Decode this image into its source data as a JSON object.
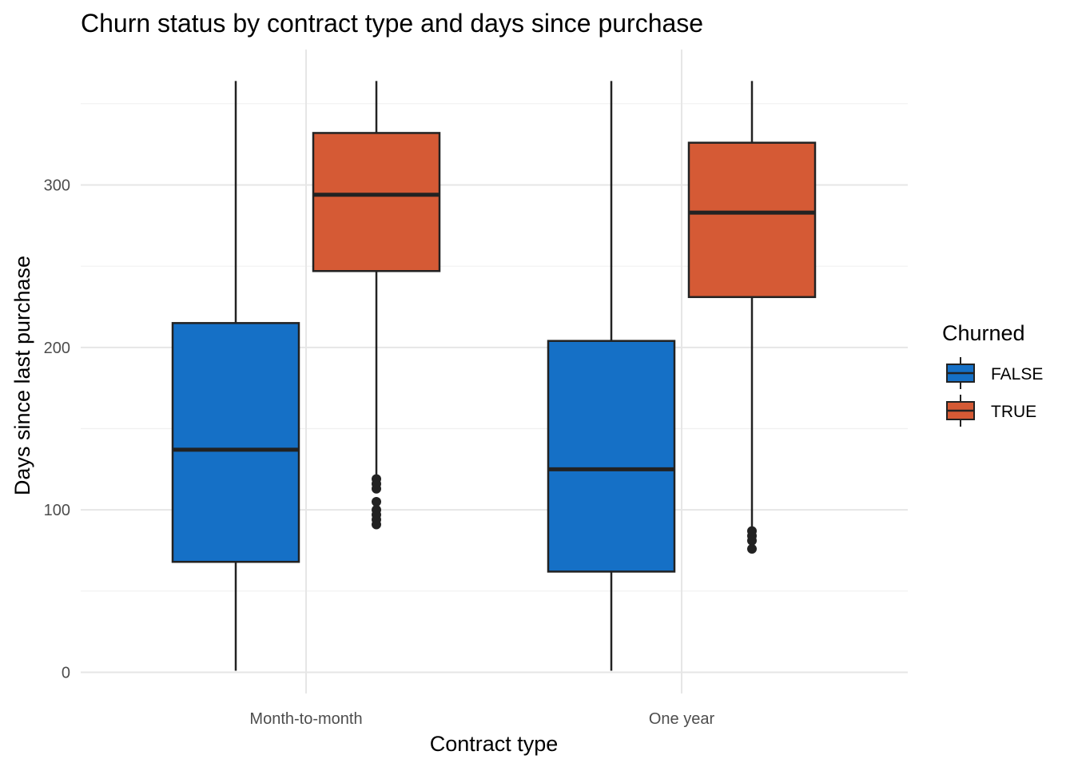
{
  "chart_data": {
    "type": "boxplot",
    "title": "Churn status by contract type and days since purchase",
    "xlabel": "Contract type",
    "ylabel": "Days since last purchase",
    "categories": [
      "Month-to-month",
      "One year"
    ],
    "ylim": [
      -3,
      367
    ],
    "yticks": [
      0,
      100,
      200,
      300
    ],
    "grid": true,
    "legend": {
      "title": "Churned",
      "position": "right"
    },
    "series": [
      {
        "name": "FALSE",
        "color": "#1570C6",
        "boxes": [
          {
            "min": 1,
            "q1": 68,
            "median": 137,
            "q3": 215,
            "max": 364,
            "outliers": []
          },
          {
            "min": 1,
            "q1": 62,
            "median": 125,
            "q3": 204,
            "max": 364,
            "outliers": []
          }
        ]
      },
      {
        "name": "TRUE",
        "color": "#D55A35",
        "boxes": [
          {
            "min": 120,
            "q1": 247,
            "median": 294,
            "q3": 332,
            "max": 364,
            "outliers": [
              91,
              94,
              97,
              100,
              105,
              113,
              116,
              119
            ]
          },
          {
            "min": 88,
            "q1": 231,
            "median": 283,
            "q3": 326,
            "max": 364,
            "outliers": [
              76,
              81,
              84,
              87
            ]
          }
        ]
      }
    ]
  }
}
